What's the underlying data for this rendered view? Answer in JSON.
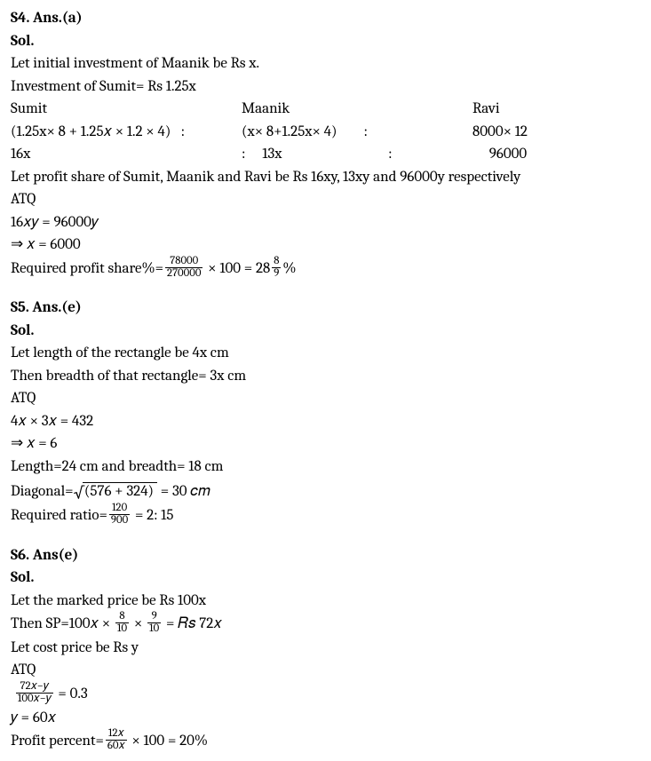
{
  "s4": {
    "heading": "S4. Ans.(a)",
    "sol_label": "Sol.",
    "line1": "Let initial investment of Maanik be Rs x.",
    "line2": "Investment of Sumit= Rs 1.25x",
    "row_names": {
      "a": "Sumit",
      "b": "Maanik",
      "c": "Ravi"
    },
    "row_expr": {
      "a": "(1.25x× 8 + 1.25𝑥 × 1.2 × 4)",
      "sep": ":",
      "b": "(x× 8+1.25x× 4)",
      "c": "8000× 12"
    },
    "row_vals": {
      "a": "16x",
      "sep": ":",
      "b": "13x",
      "c": "96000"
    },
    "line3": "Let profit share of Sumit, Maanik and Ravi be Rs 16xy, 13xy and 96000y respectively",
    "atq": "ATQ",
    "eq1": " 16𝑥𝑦 = 96000𝑦",
    "eq2": " ⇒ 𝑥 = 6000",
    "req_label": "Required profit share%=",
    "frac_num": "78000",
    "frac_den": "270000",
    "mid": " × 100 = 28",
    "mix_num": "8",
    "mix_den": "9",
    "tail": "%"
  },
  "s5": {
    "heading": "S5. Ans.(e)",
    "sol_label": "Sol.",
    "line1": "Let length of the rectangle be 4x cm",
    "line2": "Then breadth of that rectangle= 3x cm",
    "atq": "ATQ",
    "eq1": " 4𝑥 × 3𝑥 = 432",
    "eq2": "⇒ 𝑥 = 6",
    "line3": "Length=24 cm and breadth= 18 cm",
    "diag_label": "Diagonal=",
    "diag_inside": "(576 + 324)",
    "diag_tail": " = 30 𝑐𝑚",
    "req_label": "Required ratio=",
    "frac_num": "120",
    "frac_den": "900",
    "tail": " = 2: 15"
  },
  "s6": {
    "heading": "S6. Ans(e)",
    "sol_label": "Sol.",
    "line1": "Let the marked price be Rs 100x",
    "sp_label": "Then SP=100𝑥 × ",
    "f1_num": "8",
    "f1_den": "10",
    "mid_x": " × ",
    "f2_num": "9",
    "f2_den": "10",
    "sp_tail": " = 𝑅𝑠 72𝑥",
    "line2": "Let cost price be Rs y",
    "atq": "ATQ",
    "eq_frac_num": "72𝑥−𝑦",
    "eq_frac_den": "100𝑥−𝑦",
    "eq_tail": " = 0.3",
    "eq2": " 𝑦 = 60𝑥",
    "pp_label": "Profit percent=",
    "pp_num": "12𝑥",
    "pp_den": "60𝑥",
    "pp_tail": " × 100 = 20%"
  }
}
